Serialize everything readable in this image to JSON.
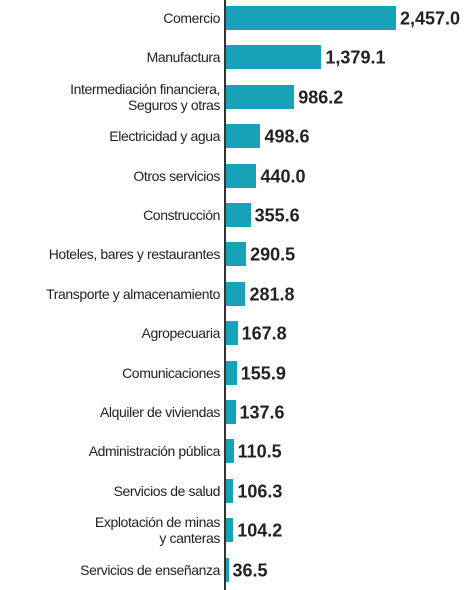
{
  "chart_data": {
    "type": "bar",
    "orientation": "horizontal",
    "color": "#17a2b8",
    "categories": [
      "Comercio",
      "Manufactura",
      "Intermediación financiera,\nSeguros y otras",
      "Electricidad y agua",
      "Otros servicios",
      "Construcción",
      "Hoteles, bares y restaurantes",
      "Transporte y almacenamiento",
      "Agropecuaria",
      "Comunicaciones",
      "Alquiler de viviendas",
      "Administración pública",
      "Servicios de salud",
      "Explotación de minas\ny canteras",
      "Servicios de enseñanza"
    ],
    "values": [
      2457.0,
      1379.1,
      986.2,
      498.6,
      440.0,
      355.6,
      290.5,
      281.8,
      167.8,
      155.9,
      137.6,
      110.5,
      106.3,
      104.2,
      36.5
    ],
    "value_labels": [
      "2,457.0",
      "1,379.1",
      "986.2",
      "498.6",
      "440.0",
      "355.6",
      "290.5",
      "281.8",
      "167.8",
      "155.9",
      "137.6",
      "110.5",
      "106.3",
      "104.2",
      "36.5"
    ]
  }
}
